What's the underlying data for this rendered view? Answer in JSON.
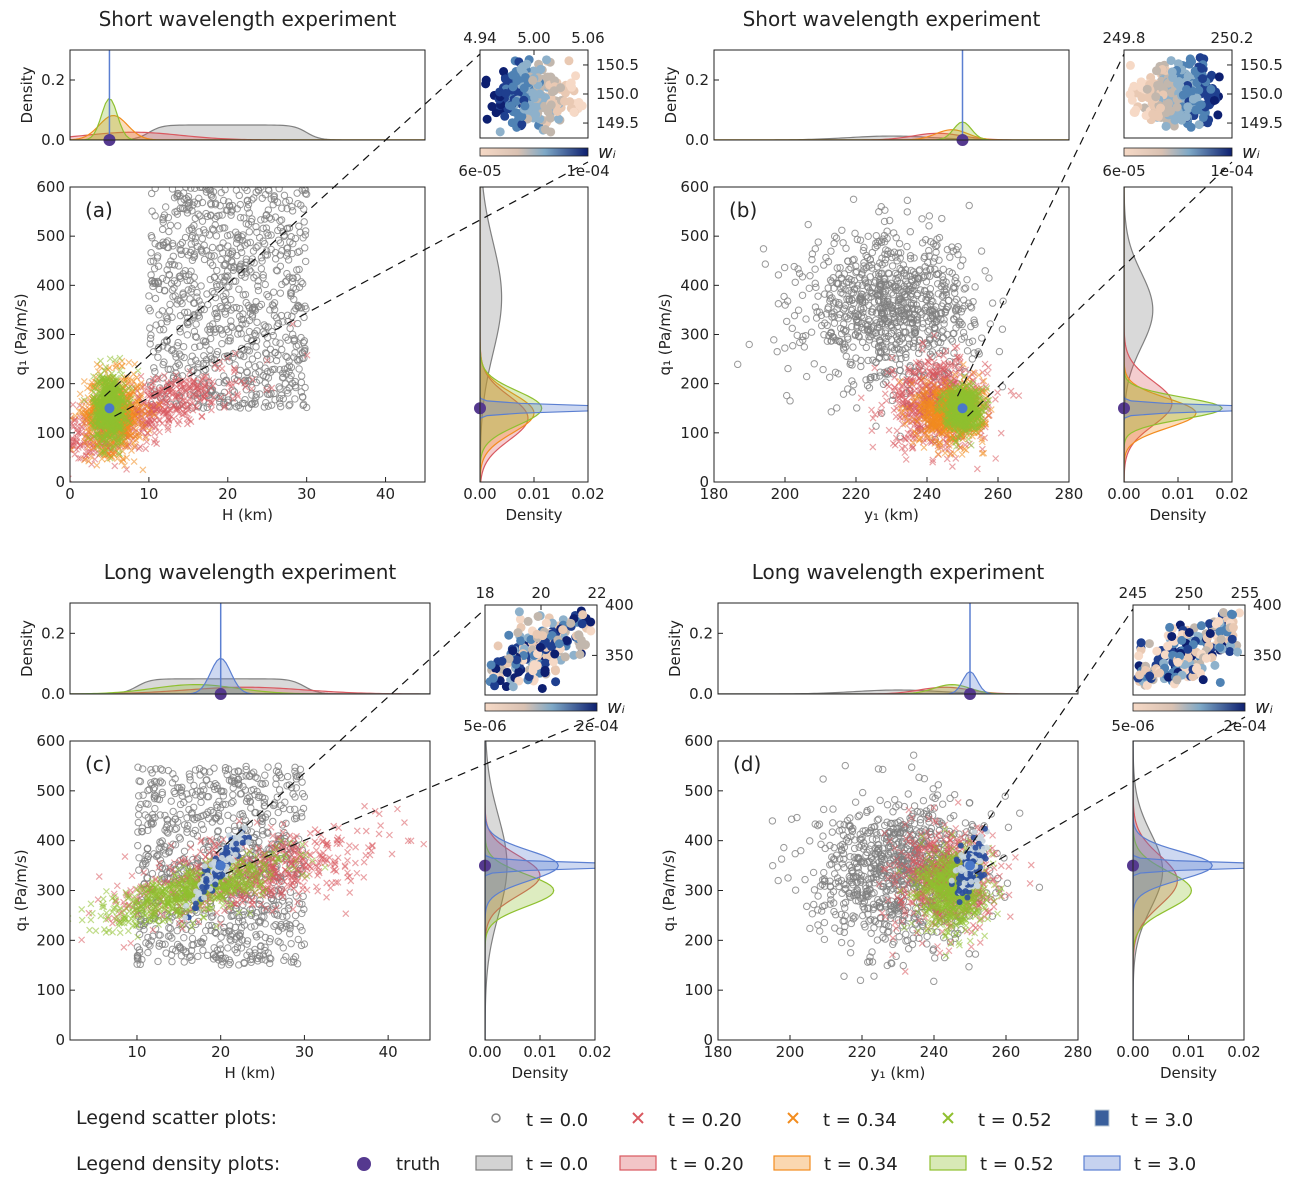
{
  "chart_data": [
    {
      "panel": "(a)",
      "type": "scatter",
      "title": "Short wavelength experiment",
      "xlabel": "H (km)",
      "ylabel": "q₁ (Pa/m/s)",
      "xlim": [
        0,
        45
      ],
      "ylim": [
        0,
        600
      ],
      "xticks": [
        0,
        10,
        20,
        30,
        40
      ],
      "yticks": [
        0,
        100,
        200,
        300,
        400,
        500,
        600
      ],
      "truth": [
        5.0,
        150
      ],
      "clouds": [
        {
          "t": "t = 0.0",
          "shape": "box",
          "x": [
            10,
            30
          ],
          "y": [
            150,
            600
          ]
        },
        {
          "t": "t = 0.20",
          "cx": 8,
          "cy": 130,
          "sx": 6,
          "sy": 45,
          "rot": 0.5
        },
        {
          "t": "t = 0.34",
          "cx": 5.5,
          "cy": 140,
          "sx": 1.8,
          "sy": 40,
          "rot": 0
        },
        {
          "t": "t = 0.52",
          "cx": 5.0,
          "cy": 150,
          "sx": 1.0,
          "sy": 35,
          "rot": 0
        }
      ],
      "top_density": {
        "ylabel": "Density",
        "ylim": [
          0,
          0.3
        ],
        "yticks": [
          0.0,
          0.2
        ]
      },
      "right_density": {
        "xlabel": "Density",
        "xlim": [
          0,
          0.02
        ],
        "xticks": [
          "0.00",
          "0.01",
          "0.02"
        ]
      },
      "inset": {
        "xticks": [
          "4.94",
          "5.00",
          "5.06"
        ],
        "yticks": [
          "150.5",
          "150.0",
          "149.5"
        ],
        "colorbar_ticks": [
          "6e-05",
          "1e-04"
        ],
        "colorbar_label": "wᵢ",
        "trend": "x"
      }
    },
    {
      "panel": "(b)",
      "type": "scatter",
      "title": "Short wavelength experiment",
      "xlabel": "y₁ (km)",
      "ylabel": "q₁ (Pa/m/s)",
      "xlim": [
        180,
        280
      ],
      "ylim": [
        0,
        600
      ],
      "xticks": [
        180,
        200,
        220,
        240,
        260,
        280
      ],
      "yticks": [
        0,
        100,
        200,
        300,
        400,
        500,
        600
      ],
      "truth": [
        250,
        150
      ],
      "clouds": [
        {
          "t": "t = 0.0",
          "cx": 230,
          "cy": 350,
          "sx": 12,
          "sy": 75,
          "rot": 0
        },
        {
          "t": "t = 0.20",
          "cx": 243,
          "cy": 160,
          "sx": 7,
          "sy": 45,
          "rot": 0
        },
        {
          "t": "t = 0.34",
          "cx": 247,
          "cy": 140,
          "sx": 4.5,
          "sy": 30,
          "rot": 0
        },
        {
          "t": "t = 0.52",
          "cx": 250,
          "cy": 150,
          "sx": 2.5,
          "sy": 22,
          "rot": 0
        }
      ],
      "top_density": {
        "ylabel": "Density",
        "ylim": [
          0,
          0.3
        ],
        "yticks": [
          0.0,
          0.2
        ]
      },
      "right_density": {
        "xlabel": "Density",
        "xlim": [
          0,
          0.02
        ],
        "xticks": [
          "0.00",
          "0.01",
          "0.02"
        ]
      },
      "inset": {
        "xticks": [
          "249.8",
          "250.2"
        ],
        "yticks": [
          "150.5",
          "150.0",
          "149.5"
        ],
        "colorbar_ticks": [
          "6e-05",
          "1e-04"
        ],
        "colorbar_label": "wᵢ",
        "trend": "x"
      }
    },
    {
      "panel": "(c)",
      "type": "scatter",
      "title": "Long wavelength experiment",
      "xlabel": "H (km)",
      "ylabel": "q₁ (Pa/m/s)",
      "xlim": [
        2,
        45
      ],
      "ylim": [
        0,
        600
      ],
      "xticks": [
        10,
        20,
        30,
        40
      ],
      "yticks": [
        0,
        100,
        200,
        300,
        400,
        500,
        600
      ],
      "truth": [
        20,
        350
      ],
      "clouds": [
        {
          "t": "t = 0.0",
          "shape": "box",
          "x": [
            10,
            30
          ],
          "y": [
            150,
            550
          ]
        },
        {
          "t": "t = 0.20",
          "cx": 23,
          "cy": 330,
          "sx": 7,
          "sy": 40,
          "rot": 0.35
        },
        {
          "t": "t = 0.52",
          "cx": 17,
          "cy": 300,
          "sx": 5,
          "sy": 32,
          "rot": 0.45
        },
        {
          "t": "t = 3.0",
          "cx": 20,
          "cy": 350,
          "sx": 1.2,
          "sy": 30,
          "rot": 0.65
        }
      ],
      "top_density": {
        "ylabel": "Density",
        "ylim": [
          0,
          0.3
        ],
        "yticks": [
          0.0,
          0.2
        ]
      },
      "right_density": {
        "xlabel": "Density",
        "xlim": [
          0,
          0.02
        ],
        "xticks": [
          "0.00",
          "0.01",
          "0.02"
        ]
      },
      "inset": {
        "xticks": [
          "18",
          "20",
          "22"
        ],
        "yticks": [
          "400",
          "350"
        ],
        "colorbar_ticks": [
          "5e-06",
          "2e-04"
        ],
        "colorbar_label": "wᵢ",
        "trend": "diag"
      }
    },
    {
      "panel": "(d)",
      "type": "scatter",
      "title": "Long wavelength experiment",
      "xlabel": "y₁ (km)",
      "ylabel": "q₁ (Pa/m/s)",
      "xlim": [
        180,
        280
      ],
      "ylim": [
        0,
        600
      ],
      "xticks": [
        180,
        200,
        220,
        240,
        260,
        280
      ],
      "yticks": [
        0,
        100,
        200,
        300,
        400,
        500,
        600
      ],
      "truth": [
        250,
        350
      ],
      "clouds": [
        {
          "t": "t = 0.0",
          "cx": 230,
          "cy": 340,
          "sx": 12,
          "sy": 75,
          "rot": 0
        },
        {
          "t": "t = 0.20",
          "cx": 243,
          "cy": 320,
          "sx": 7,
          "sy": 50,
          "rot": 0
        },
        {
          "t": "t = 0.52",
          "cx": 245,
          "cy": 300,
          "sx": 5,
          "sy": 38,
          "rot": 0
        },
        {
          "t": "t = 3.0",
          "cx": 250,
          "cy": 350,
          "sx": 2,
          "sy": 28,
          "rot": 0.3
        }
      ],
      "top_density": {
        "ylabel": "Density",
        "ylim": [
          0,
          0.3
        ],
        "yticks": [
          0.0,
          0.2
        ]
      },
      "right_density": {
        "xlabel": "Density",
        "xlim": [
          0,
          0.02
        ],
        "xticks": [
          "0.00",
          "0.01",
          "0.02"
        ]
      },
      "inset": {
        "xticks": [
          "245",
          "250",
          "255"
        ],
        "yticks": [
          "400",
          "350"
        ],
        "colorbar_ticks": [
          "5e-06",
          "2e-04"
        ],
        "colorbar_label": "wᵢ",
        "trend": "diag"
      }
    }
  ],
  "colors": {
    "t0": "#808080",
    "t020": "#d9585f",
    "t034": "#f28c1e",
    "t052": "#8fc02f",
    "t3": "#5b7fd1",
    "truth": "#55398f"
  },
  "legend": {
    "scatter_title": "Legend scatter plots:",
    "density_title": "Legend density plots:",
    "scatter_items": [
      "t = 0.0",
      "t = 0.20",
      "t = 0.34",
      "t = 0.52",
      "t = 3.0"
    ],
    "density_items": [
      "truth",
      "t = 0.0",
      "t = 0.20",
      "t = 0.34",
      "t = 0.52",
      "t = 3.0"
    ]
  }
}
